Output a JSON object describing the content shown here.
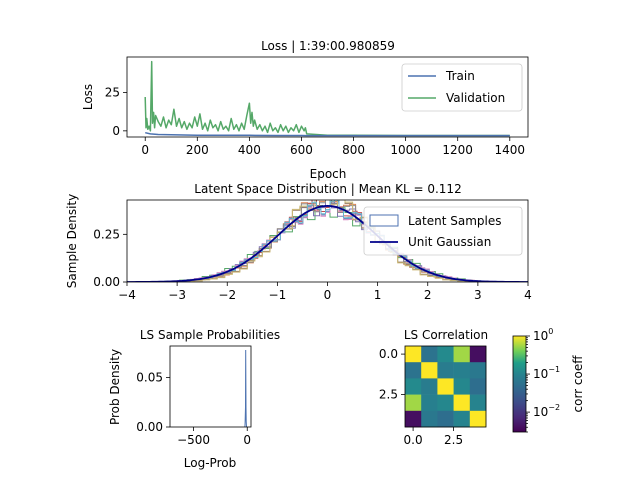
{
  "figure": {
    "width": 640,
    "height": 480
  },
  "chart_data": [
    {
      "id": "loss",
      "type": "line",
      "title": "Loss | 1:39:00.980859",
      "xlabel": "Epoch",
      "ylabel": "Loss",
      "xlim": [
        -70,
        1470
      ],
      "ylim": [
        -4,
        48
      ],
      "xticks": [
        0,
        200,
        400,
        600,
        800,
        1000,
        1200,
        1400
      ],
      "xtick_labels": [
        "0",
        "200",
        "400",
        "600",
        "800",
        "1000",
        "1200",
        "1400"
      ],
      "yticks": [
        0,
        25
      ],
      "ytick_labels": [
        "0",
        "25"
      ],
      "legend": {
        "position": "upper-right",
        "entries": [
          "Train",
          "Validation"
        ]
      },
      "series": [
        {
          "name": "Train",
          "color": "#4c72b0",
          "x": [
            0,
            20,
            50,
            100,
            200,
            300,
            400,
            500,
            600,
            620,
            700,
            800,
            1000,
            1200,
            1400
          ],
          "y": [
            -1.2,
            -2.0,
            -2.4,
            -2.6,
            -2.8,
            -2.9,
            -2.9,
            -3.0,
            -3.0,
            -3.1,
            -3.1,
            -3.1,
            -3.1,
            -3.1,
            -3.1
          ]
        },
        {
          "name": "Validation",
          "color": "#55a868",
          "x": [
            0,
            3,
            6,
            10,
            15,
            20,
            25,
            28,
            32,
            36,
            40,
            50,
            60,
            70,
            80,
            90,
            100,
            110,
            120,
            130,
            140,
            150,
            160,
            170,
            180,
            190,
            200,
            210,
            220,
            230,
            240,
            250,
            260,
            270,
            280,
            290,
            300,
            310,
            320,
            330,
            340,
            350,
            360,
            370,
            380,
            390,
            400,
            405,
            410,
            415,
            420,
            430,
            440,
            450,
            460,
            470,
            480,
            490,
            500,
            510,
            520,
            530,
            540,
            550,
            560,
            570,
            580,
            590,
            600,
            610,
            615,
            620,
            700,
            800,
            1000,
            1200,
            1400
          ],
          "y": [
            22,
            2,
            8,
            1,
            3,
            0,
            45,
            5,
            12,
            2,
            10,
            6,
            3,
            9,
            2,
            7,
            4,
            14,
            3,
            8,
            2,
            6,
            1,
            5,
            2,
            9,
            3,
            11,
            1,
            5,
            0,
            7,
            2,
            4,
            0,
            6,
            1,
            3,
            0,
            8,
            1,
            4,
            0,
            5,
            1,
            10,
            18,
            5,
            12,
            3,
            7,
            1,
            4,
            0,
            3,
            -1,
            5,
            0,
            2,
            -1,
            4,
            0,
            3,
            -1,
            2,
            0,
            4,
            -1,
            3,
            0,
            2,
            -2,
            -2.8,
            -2.9,
            -3.0,
            -3.0,
            -3.0
          ]
        }
      ]
    },
    {
      "id": "latent",
      "type": "line",
      "title": "Latent Space Distribution | Mean KL = 0.112",
      "xlabel": "",
      "ylabel": "Sample Density",
      "xlim": [
        -4,
        4
      ],
      "ylim": [
        0,
        0.43
      ],
      "xticks": [
        -4,
        -3,
        -2,
        -1,
        0,
        1,
        2,
        3,
        4
      ],
      "xtick_labels": [
        "−4",
        "−3",
        "−2",
        "−1",
        "0",
        "1",
        "2",
        "3",
        "4"
      ],
      "yticks": [
        0,
        0.25
      ],
      "ytick_labels": [
        "0.00",
        "0.25"
      ],
      "legend": {
        "position": "upper-right",
        "entries": [
          "Latent Samples",
          "Unit Gaussian"
        ]
      },
      "gaussian": {
        "name": "Unit Gaussian",
        "color": "#00008b",
        "mean": 0,
        "std": 1
      },
      "samples": {
        "name": "Latent Samples",
        "colors": [
          "#4c72b0",
          "#dd8452",
          "#55a868",
          "#c44e52",
          "#8172b3",
          "#937860",
          "#da8bc3",
          "#8c8c8c",
          "#ccb974",
          "#64b5cd"
        ],
        "stds": [
          1.02,
          0.93,
          1.05,
          0.97,
          1.01,
          0.9,
          1.04,
          0.95,
          0.88,
          1.0
        ]
      }
    },
    {
      "id": "ls-prob",
      "type": "line",
      "title": "LS Sample Probabilities",
      "xlabel": "Log-Prob",
      "ylabel": "Prob Density",
      "xlim": [
        -720,
        35
      ],
      "ylim": [
        0,
        0.082
      ],
      "xticks": [
        -500,
        0
      ],
      "xtick_labels": [
        "−500",
        "0"
      ],
      "yticks": [
        0,
        0.05
      ],
      "ytick_labels": [
        "0.00",
        "0.05"
      ],
      "series": [
        {
          "name": "",
          "color": "#4c72b0",
          "x": [
            -22,
            -20,
            -18,
            -16,
            -14,
            -12,
            -10,
            -8,
            -6
          ],
          "y": [
            0,
            0.004,
            0.012,
            0.02,
            0.078,
            0.02,
            0.006,
            0.002,
            0
          ]
        }
      ]
    },
    {
      "id": "ls-corr",
      "type": "heatmap",
      "title": "LS Correlation",
      "xticks": [
        0,
        2.5
      ],
      "xtick_labels": [
        "0.0",
        "2.5"
      ],
      "yticks": [
        0,
        2.5
      ],
      "ytick_labels": [
        "0.0",
        "2.5"
      ],
      "values": [
        [
          1.0,
          0.06,
          0.12,
          0.55,
          0.004
        ],
        [
          0.06,
          1.0,
          0.08,
          0.09,
          0.07
        ],
        [
          0.12,
          0.08,
          1.0,
          0.11,
          0.05
        ],
        [
          0.55,
          0.09,
          0.11,
          1.0,
          0.1
        ],
        [
          0.004,
          0.07,
          0.05,
          0.1,
          1.0
        ]
      ],
      "colorbar": {
        "label": "corr coeff",
        "scale": "log",
        "range": [
          0.003,
          1
        ],
        "tick_labels": [
          "10^0",
          "10^-1",
          "10^-2"
        ]
      }
    }
  ]
}
